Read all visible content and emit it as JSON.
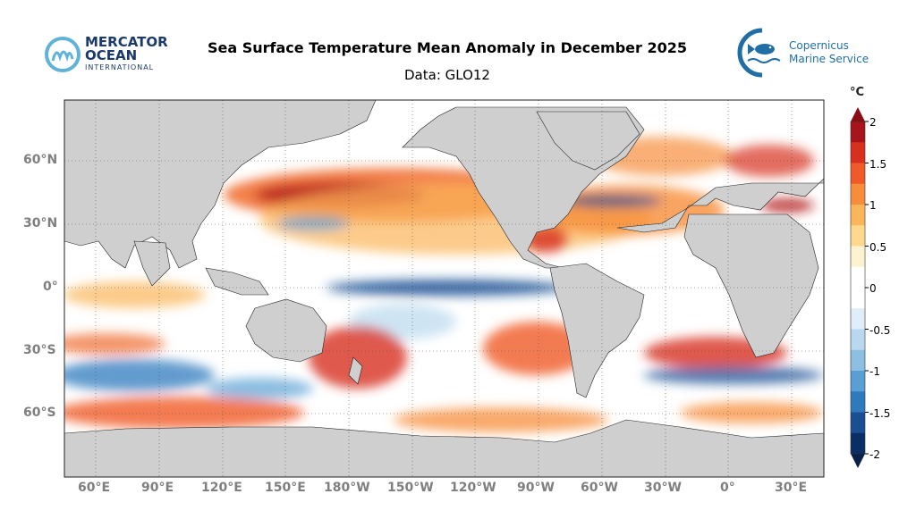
{
  "header": {
    "title": "Sea Surface Temperature Mean Anomaly in December 2025",
    "subtitle": "Data: GLO12"
  },
  "logos": {
    "mercator": {
      "line1": "MERCATOR",
      "line2": "OCEAN",
      "line3": "INTERNATIONAL"
    },
    "copernicus": {
      "line1": "Copernicus",
      "line2": "Marine Service"
    }
  },
  "map": {
    "lon_labels": [
      "60°E",
      "90°E",
      "120°E",
      "150°E",
      "180°W",
      "150°W",
      "120°W",
      "90°W",
      "60°W",
      "30°W",
      "0°",
      "30°E"
    ],
    "lat_labels": [
      "60°N",
      "30°N",
      "0°",
      "30°S",
      "60°S"
    ]
  },
  "colorbar": {
    "unit": "°C",
    "ticks": [
      "2",
      "1.5",
      "1",
      "0.5",
      "0",
      "-0.5",
      "-1",
      "-1.5",
      "-2"
    ],
    "colors": [
      "#a8141b",
      "#d7301f",
      "#f05a28",
      "#f78d3a",
      "#fbb55a",
      "#fdd98e",
      "#fef3d0",
      "#ffffff",
      "#ffffff",
      "#dfeef8",
      "#b9d8ee",
      "#8dbfe3",
      "#5a9fd4",
      "#2f79bd",
      "#1a4f94",
      "#0b2e66"
    ]
  },
  "colors": {
    "ocean_bg": "#ffffff",
    "land": "#cfcfcf",
    "warm": "#e8612c",
    "cold": "#2f79bd"
  }
}
